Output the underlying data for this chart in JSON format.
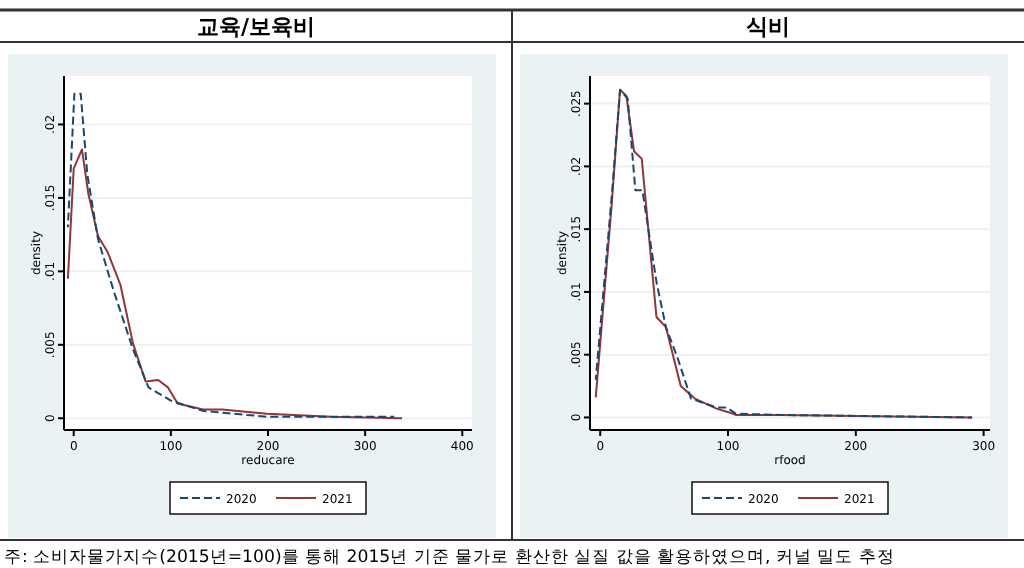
{
  "chart_data": [
    {
      "type": "line",
      "title": "교육/보육비",
      "xlabel": "reducare",
      "ylabel": "density",
      "xlim": [
        -10,
        410
      ],
      "ylim": [
        -0.0008,
        0.0233
      ],
      "xticks": [
        0,
        100,
        200,
        300,
        400
      ],
      "yticks": [
        {
          "value": 0,
          "label": "0"
        },
        {
          "value": 0.005,
          "label": ".005"
        },
        {
          "value": 0.01,
          "label": ".01"
        },
        {
          "value": 0.015,
          "label": ".015"
        },
        {
          "value": 0.02,
          "label": ".02"
        }
      ],
      "grid": "y",
      "legend": "bottom",
      "series": [
        {
          "name": "2020",
          "color": "#1a476f",
          "line_style": "dashed",
          "x": [
            -6,
            0.7,
            7.2,
            14,
            25,
            41,
            61,
            77,
            100,
            133,
            199,
            330
          ],
          "values": [
            0.013,
            0.0221,
            0.0221,
            0.0166,
            0.0122,
            0.0087,
            0.0047,
            0.0021,
            0.0012,
            0.0005,
            0.0001,
            0.0001
          ]
        },
        {
          "name": "2021",
          "color": "#90353b",
          "line_style": "solid",
          "x": [
            -6,
            0,
            8.5,
            15,
            25,
            35,
            48,
            61,
            74,
            87,
            97,
            107,
            133,
            153,
            199,
            265,
            338
          ],
          "values": [
            0.0095,
            0.017,
            0.0183,
            0.0153,
            0.0124,
            0.0113,
            0.0091,
            0.0051,
            0.0025,
            0.0026,
            0.0021,
            0.001,
            0.0006,
            0.0006,
            0.0003,
            0.0001,
            0
          ]
        }
      ]
    },
    {
      "type": "line",
      "title": "식비",
      "xlabel": "rfood",
      "ylabel": "density",
      "xlim": [
        -8,
        305
      ],
      "ylim": [
        -0.001,
        0.0272
      ],
      "xticks": [
        0,
        100,
        200,
        300
      ],
      "yticks": [
        {
          "value": 0,
          "label": "0"
        },
        {
          "value": 0.005,
          "label": ".005"
        },
        {
          "value": 0.01,
          "label": ".01"
        },
        {
          "value": 0.015,
          "label": ".015"
        },
        {
          "value": 0.02,
          "label": ".02"
        },
        {
          "value": 0.025,
          "label": ".025"
        }
      ],
      "grid": "y",
      "legend": "bottom",
      "series": [
        {
          "name": "2020",
          "color": "#1a476f",
          "line_style": "dashed",
          "x": [
            -3.5,
            9,
            15.5,
            21.5,
            27.5,
            33,
            44,
            51.4,
            61,
            71,
            91,
            99,
            106,
            141,
            291
          ],
          "values": [
            0.003,
            0.0176,
            0.0261,
            0.0254,
            0.0181,
            0.0181,
            0.0108,
            0.0072,
            0.0046,
            0.0015,
            0.0008,
            0.0008,
            0.0003,
            0.0002,
            0
          ]
        },
        {
          "name": "2021",
          "color": "#90353b",
          "line_style": "solid",
          "x": [
            -3.5,
            9,
            15.5,
            20.5,
            26.5,
            32.5,
            44,
            51.4,
            63,
            74,
            91,
            101,
            106,
            141,
            291
          ],
          "values": [
            0.0016,
            0.017,
            0.0261,
            0.0256,
            0.0212,
            0.0206,
            0.008,
            0.0072,
            0.0025,
            0.0015,
            0.0007,
            0.0004,
            0.0002,
            0.0002,
            0
          ]
        }
      ],
      "annotations": [
        "주: 소비자물가지수(2015년=100)를 통해 2015년 기준 물가로 환산한 실질 값을 활용하였으며, 커널 밀도 추정"
      ]
    }
  ]
}
